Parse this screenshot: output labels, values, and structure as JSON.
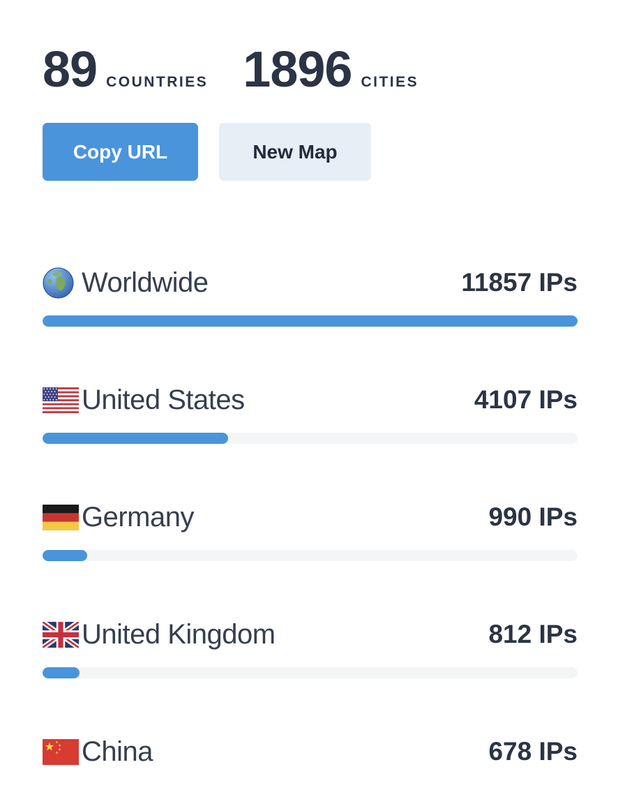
{
  "colors": {
    "accent_blue": "#4a94db",
    "navy_text": "#2b3444",
    "bar_track": "#f3f5f7",
    "secondary_button_bg": "#e6eef6"
  },
  "stats": [
    {
      "value": "89",
      "label": "COUNTRIES"
    },
    {
      "value": "1896",
      "label": "CITIES"
    }
  ],
  "buttons": {
    "copy_url_label": "Copy URL",
    "new_map_label": "New Map"
  },
  "list": {
    "total_ips": 11857,
    "rows": [
      {
        "name": "Worldwide",
        "icon": "globe-icon",
        "ips": 11857,
        "ips_label": "11857 IPs",
        "bar_visible": true
      },
      {
        "name": "United States",
        "icon": "flag-united-states-icon",
        "ips": 4107,
        "ips_label": "4107 IPs",
        "bar_visible": true
      },
      {
        "name": "Germany",
        "icon": "flag-germany-icon",
        "ips": 990,
        "ips_label": "990 IPs",
        "bar_visible": true
      },
      {
        "name": "United Kingdom",
        "icon": "flag-united-kingdom-icon",
        "ips": 812,
        "ips_label": "812 IPs",
        "bar_visible": true
      },
      {
        "name": "China",
        "icon": "flag-china-icon",
        "ips": 678,
        "ips_label": "678 IPs",
        "bar_visible": false
      }
    ]
  }
}
